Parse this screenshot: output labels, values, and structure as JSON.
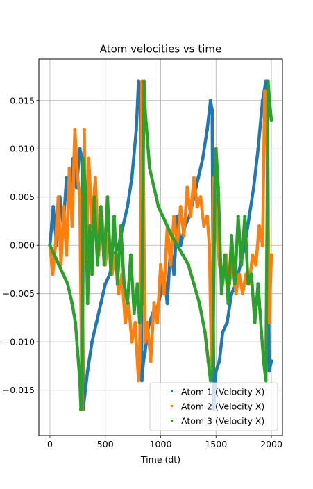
{
  "chart_data": {
    "type": "scatter",
    "title": "Atom velocities vs time",
    "xlabel": "Time (dt)",
    "ylabel": "",
    "xlim": [
      -100,
      2100
    ],
    "ylim": [
      -0.0197,
      0.0193
    ],
    "xticks": [
      0,
      500,
      1000,
      1500,
      2000
    ],
    "xtick_labels": [
      "0",
      "500",
      "1000",
      "1500",
      "2000"
    ],
    "yticks": [
      -0.015,
      -0.01,
      -0.005,
      0,
      0.005,
      0.01,
      0.015
    ],
    "ytick_labels": [
      "−0.015",
      "−0.010",
      "−0.005",
      "0.000",
      "0.005",
      "0.010",
      "0.015"
    ],
    "grid": true,
    "legend_position": "lower-right",
    "series": [
      {
        "name": "Atom 1 (Velocity X)",
        "color": "#1f77b4",
        "x": [
          0,
          30,
          60,
          90,
          120,
          150,
          180,
          210,
          240,
          270,
          290,
          300,
          320,
          340,
          380,
          420,
          460,
          500,
          540,
          580,
          620,
          660,
          700,
          740,
          780,
          800,
          820,
          830,
          845,
          860,
          880,
          900,
          930,
          960,
          1000,
          1030,
          1060,
          1090,
          1120,
          1150,
          1180,
          1220,
          1260,
          1300,
          1340,
          1380,
          1420,
          1450,
          1465,
          1480,
          1500,
          1530,
          1560,
          1600,
          1640,
          1680,
          1720,
          1760,
          1800,
          1840,
          1880,
          1920,
          1950,
          1965,
          1980,
          2000
        ],
        "y": [
          0.0,
          0.004,
          0.0,
          0.005,
          0.002,
          0.007,
          0.004,
          0.009,
          0.006,
          0.01,
          0.009,
          -0.017,
          -0.015,
          -0.013,
          -0.01,
          -0.008,
          -0.006,
          -0.004,
          -0.003,
          -0.001,
          0.0,
          0.002,
          0.004,
          0.007,
          0.012,
          0.017,
          0.016,
          -0.014,
          -0.012,
          -0.011,
          -0.009,
          -0.008,
          -0.007,
          -0.007,
          -0.005,
          -0.003,
          -0.006,
          0.0,
          -0.003,
          0.003,
          0.0,
          0.002,
          0.003,
          0.005,
          0.007,
          0.009,
          0.012,
          0.015,
          0.014,
          -0.017,
          -0.013,
          -0.012,
          -0.009,
          -0.008,
          -0.005,
          -0.004,
          -0.002,
          0.0,
          0.003,
          0.006,
          0.01,
          0.015,
          0.017,
          0.014,
          -0.013,
          -0.012
        ]
      },
      {
        "name": "Atom 2 (Velocity X)",
        "color": "#ff7f0e",
        "x": [
          0,
          25,
          50,
          75,
          100,
          125,
          150,
          175,
          200,
          225,
          250,
          270,
          290,
          310,
          330,
          350,
          380,
          410,
          440,
          470,
          500,
          530,
          560,
          590,
          620,
          650,
          680,
          710,
          740,
          770,
          800,
          810,
          830,
          840,
          850,
          860,
          880,
          910,
          940,
          970,
          1000,
          1030,
          1060,
          1090,
          1120,
          1150,
          1180,
          1210,
          1240,
          1270,
          1300,
          1330,
          1360,
          1390,
          1420,
          1440,
          1460,
          1480,
          1500,
          1530,
          1560,
          1590,
          1620,
          1650,
          1680,
          1710,
          1740,
          1770,
          1800,
          1830,
          1860,
          1890,
          1920,
          1940,
          1960,
          1980,
          2000
        ],
        "y": [
          0.0,
          -0.003,
          0.0,
          0.005,
          -0.002,
          0.004,
          -0.001,
          0.008,
          0.002,
          0.012,
          0.007,
          0.005,
          -0.017,
          0.012,
          -0.002,
          0.009,
          0.002,
          0.007,
          -0.001,
          0.003,
          -0.002,
          0.001,
          -0.003,
          -0.001,
          -0.005,
          -0.003,
          -0.008,
          -0.006,
          -0.01,
          -0.008,
          -0.014,
          -0.012,
          0.017,
          0.012,
          0.0,
          -0.01,
          -0.008,
          -0.012,
          -0.006,
          -0.008,
          -0.002,
          -0.005,
          0.002,
          -0.002,
          0.003,
          0.0,
          0.004,
          0.001,
          0.006,
          0.003,
          0.007,
          0.004,
          0.005,
          0.002,
          0.003,
          0.0,
          -0.013,
          0.007,
          0.003,
          -0.002,
          -0.004,
          -0.001,
          -0.004,
          -0.002,
          -0.005,
          -0.003,
          -0.005,
          -0.003,
          -0.004,
          -0.001,
          -0.002,
          0.002,
          0.0,
          0.016,
          0.012,
          -0.008,
          -0.001
        ]
      },
      {
        "name": "Atom 3 (Velocity X)",
        "color": "#2ca02c",
        "x": [
          0,
          40,
          80,
          120,
          160,
          200,
          230,
          250,
          270,
          280,
          290,
          300,
          320,
          340,
          360,
          380,
          400,
          430,
          460,
          490,
          520,
          550,
          580,
          610,
          640,
          670,
          700,
          730,
          760,
          790,
          810,
          830,
          850,
          860,
          880,
          900,
          940,
          980,
          1020,
          1060,
          1100,
          1150,
          1200,
          1250,
          1300,
          1350,
          1400,
          1430,
          1450,
          1470,
          1490,
          1500,
          1520,
          1550,
          1580,
          1610,
          1640,
          1670,
          1700,
          1730,
          1760,
          1790,
          1820,
          1850,
          1880,
          1910,
          1930,
          1950,
          1970,
          1990,
          2000
        ],
        "y": [
          0.0,
          -0.001,
          -0.002,
          -0.003,
          -0.004,
          -0.006,
          -0.008,
          -0.011,
          -0.014,
          -0.017,
          -0.015,
          0.009,
          0.006,
          -0.006,
          0.002,
          -0.003,
          0.005,
          -0.002,
          0.004,
          -0.002,
          0.005,
          -0.003,
          0.003,
          -0.004,
          0.002,
          -0.004,
          -0.006,
          -0.001,
          -0.007,
          -0.004,
          -0.008,
          -0.006,
          0.017,
          0.014,
          0.011,
          0.008,
          0.006,
          0.004,
          0.003,
          0.002,
          0.001,
          0.0,
          -0.001,
          -0.002,
          -0.004,
          -0.006,
          -0.009,
          -0.012,
          -0.014,
          -0.013,
          0.006,
          0.01,
          0.006,
          -0.005,
          -0.001,
          -0.006,
          0.001,
          -0.004,
          0.003,
          -0.002,
          0.003,
          -0.004,
          -0.003,
          -0.008,
          -0.004,
          -0.009,
          -0.012,
          -0.014,
          0.017,
          0.014,
          0.013
        ]
      }
    ]
  }
}
